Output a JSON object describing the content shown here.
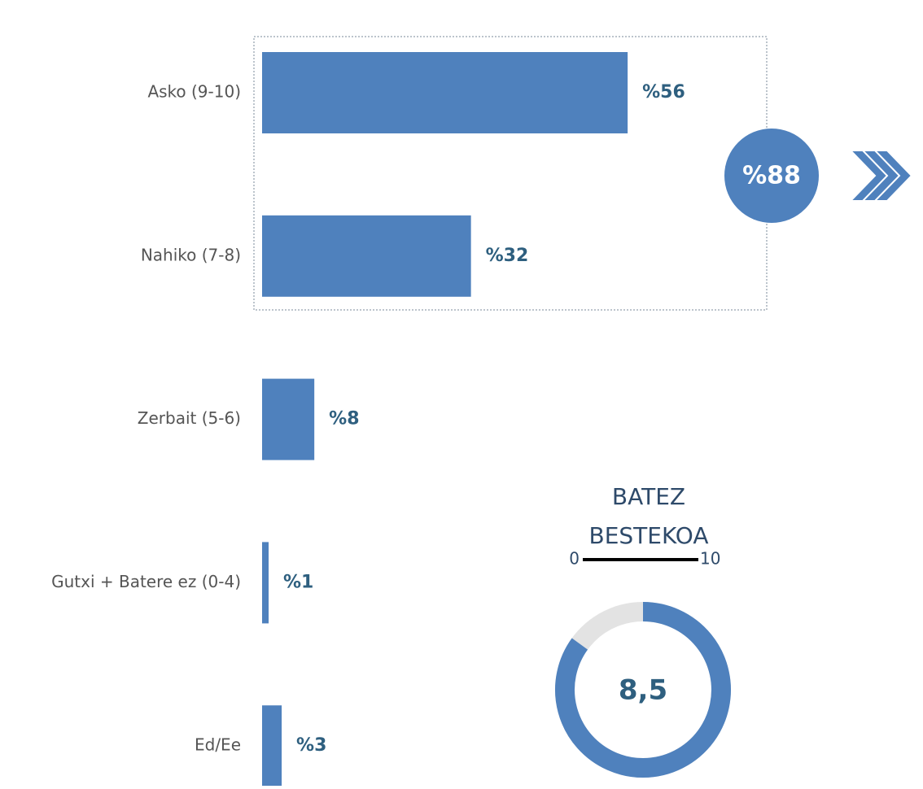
{
  "chart_data": [
    {
      "type": "bar",
      "orientation": "horizontal",
      "categories": [
        "Asko (9-10)",
        "Nahiko (7-8)",
        "Zerbait (5-6)",
        "Gutxi + Batere ez (0-4)",
        "Ed/Ee"
      ],
      "values": [
        56,
        32,
        8,
        1,
        3
      ],
      "value_labels": [
        "%56",
        "%32",
        "%8",
        "%1",
        "%3"
      ],
      "color": "#4f81bd",
      "total": {
        "value": 88,
        "label": "%88"
      }
    },
    {
      "type": "donut",
      "title": [
        "BATEZ",
        "BESTEKOA"
      ],
      "lim": [
        0,
        10
      ],
      "value": 8.5,
      "value_label": "8,5",
      "color": "#4f81bd",
      "track_color": "#e3e3e3"
    }
  ]
}
